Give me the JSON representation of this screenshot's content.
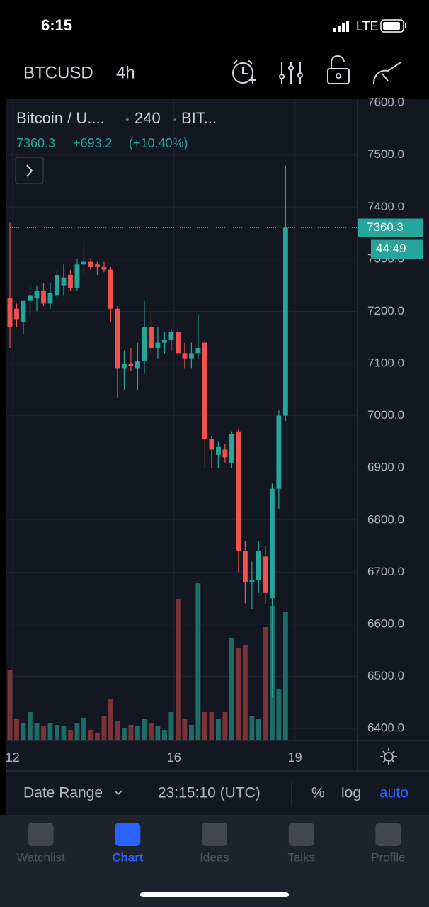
{
  "status_bar": {
    "time": "6:15",
    "network": "LTE"
  },
  "toolbar": {
    "symbol": "BTCUSD",
    "interval": "4h"
  },
  "legend": {
    "name": "Bitcoin / U....",
    "interval": "240",
    "exchange": "BIT...",
    "last": "7360.3",
    "change": "+693.2",
    "change_pct": "(+10.40%)"
  },
  "price_tag": "7360.3",
  "countdown": "44:49",
  "chart_data": {
    "type": "candlestick",
    "x": [
      0,
      1,
      2,
      3,
      4,
      5,
      6,
      7,
      8,
      9,
      10,
      11,
      12,
      13,
      14,
      15,
      16,
      17,
      18,
      19,
      20,
      21,
      22,
      23,
      24,
      25,
      26,
      27,
      28,
      29,
      30,
      31,
      32,
      33,
      34,
      35,
      36,
      37,
      38,
      39,
      40,
      41
    ],
    "open": [
      7225,
      7205,
      7180,
      7220,
      7225,
      7240,
      7215,
      7230,
      7250,
      7270,
      7245,
      7290,
      7295,
      7290,
      7285,
      7280,
      7205,
      7090,
      7100,
      7090,
      7105,
      7170,
      7130,
      7140,
      7145,
      7160,
      7120,
      7110,
      7120,
      7140,
      6955,
      6925,
      6935,
      6910,
      6970,
      6740,
      6680,
      6685,
      6730,
      6650,
      6860,
      7000
    ],
    "high": [
      7370,
      7215,
      7215,
      7250,
      7250,
      7255,
      7255,
      7280,
      7290,
      7280,
      7300,
      7335,
      7300,
      7295,
      7295,
      7285,
      7210,
      7125,
      7130,
      7140,
      7220,
      7200,
      7170,
      7160,
      7165,
      7165,
      7140,
      7140,
      7195,
      7145,
      6960,
      6950,
      6945,
      6970,
      6975,
      6760,
      6720,
      6760,
      6750,
      6870,
      7010,
      7480
    ],
    "low": [
      7130,
      7170,
      7155,
      7190,
      7200,
      7210,
      7205,
      7225,
      7230,
      7240,
      7240,
      7270,
      7280,
      7270,
      7275,
      7180,
      7035,
      7050,
      7085,
      7050,
      7080,
      7120,
      7110,
      7120,
      7125,
      7110,
      7090,
      7090,
      7110,
      6900,
      6900,
      6900,
      6910,
      6900,
      6700,
      6640,
      6630,
      6660,
      6640,
      6460,
      6820,
      6990
    ],
    "close": [
      7170,
      7185,
      7220,
      7230,
      7240,
      7215,
      7235,
      7270,
      7265,
      7245,
      7290,
      7295,
      7285,
      7285,
      7280,
      7205,
      7090,
      7100,
      7095,
      7105,
      7170,
      7130,
      7140,
      7145,
      7160,
      7120,
      7110,
      7120,
      7130,
      6955,
      6935,
      6940,
      6920,
      6965,
      6740,
      6680,
      6685,
      6740,
      6660,
      6860,
      7000,
      7360.3
    ],
    "volume": [
      100,
      30,
      25,
      40,
      25,
      20,
      25,
      22,
      20,
      15,
      25,
      32,
      15,
      10,
      35,
      58,
      28,
      18,
      22,
      20,
      30,
      25,
      20,
      15,
      40,
      200,
      30,
      22,
      222,
      40,
      40,
      30,
      40,
      145,
      130,
      135,
      35,
      30,
      160,
      190,
      73,
      182
    ],
    "volume_lim": [
      0,
      905
    ],
    "up_color": "#26a69a",
    "down_color": "#ef5350",
    "up_volume_color": "#1f6b66",
    "down_volume_color": "#7a3336",
    "ylim": [
      6377,
      7607
    ],
    "yticks": [
      {
        "value": 6400,
        "label": "6400.0"
      },
      {
        "value": 6500,
        "label": "6500.0"
      },
      {
        "value": 6600,
        "label": "6600.0"
      },
      {
        "value": 6700,
        "label": "6700.0"
      },
      {
        "value": 6800,
        "label": "6800.0"
      },
      {
        "value": 6900,
        "label": "6900.0"
      },
      {
        "value": 7000,
        "label": "7000.0"
      },
      {
        "value": 7100,
        "label": "7100.0"
      },
      {
        "value": 7200,
        "label": "7200.0"
      },
      {
        "value": 7300,
        "label": "7300.0"
      },
      {
        "value": 7400,
        "label": "7400.0"
      },
      {
        "value": 7500,
        "label": "7500.0"
      },
      {
        "value": 7600,
        "label": "7600.0"
      }
    ],
    "xlim": [
      -0.63,
      51.7
    ],
    "xticks": [
      {
        "value": 0.4,
        "label": "12"
      },
      {
        "value": 24.4,
        "label": "16"
      },
      {
        "value": 42.4,
        "label": "19"
      }
    ],
    "grid": true
  },
  "bottom_bar": {
    "date_range": "Date Range",
    "time": "23:15:10 (UTC)",
    "percent": "%",
    "log": "log",
    "auto": "auto"
  },
  "tabs": [
    {
      "label": "Watchlist",
      "selected": false
    },
    {
      "label": "Chart",
      "selected": true
    },
    {
      "label": "Ideas",
      "selected": false
    },
    {
      "label": "Talks",
      "selected": false
    },
    {
      "label": "Profile",
      "selected": false
    }
  ]
}
